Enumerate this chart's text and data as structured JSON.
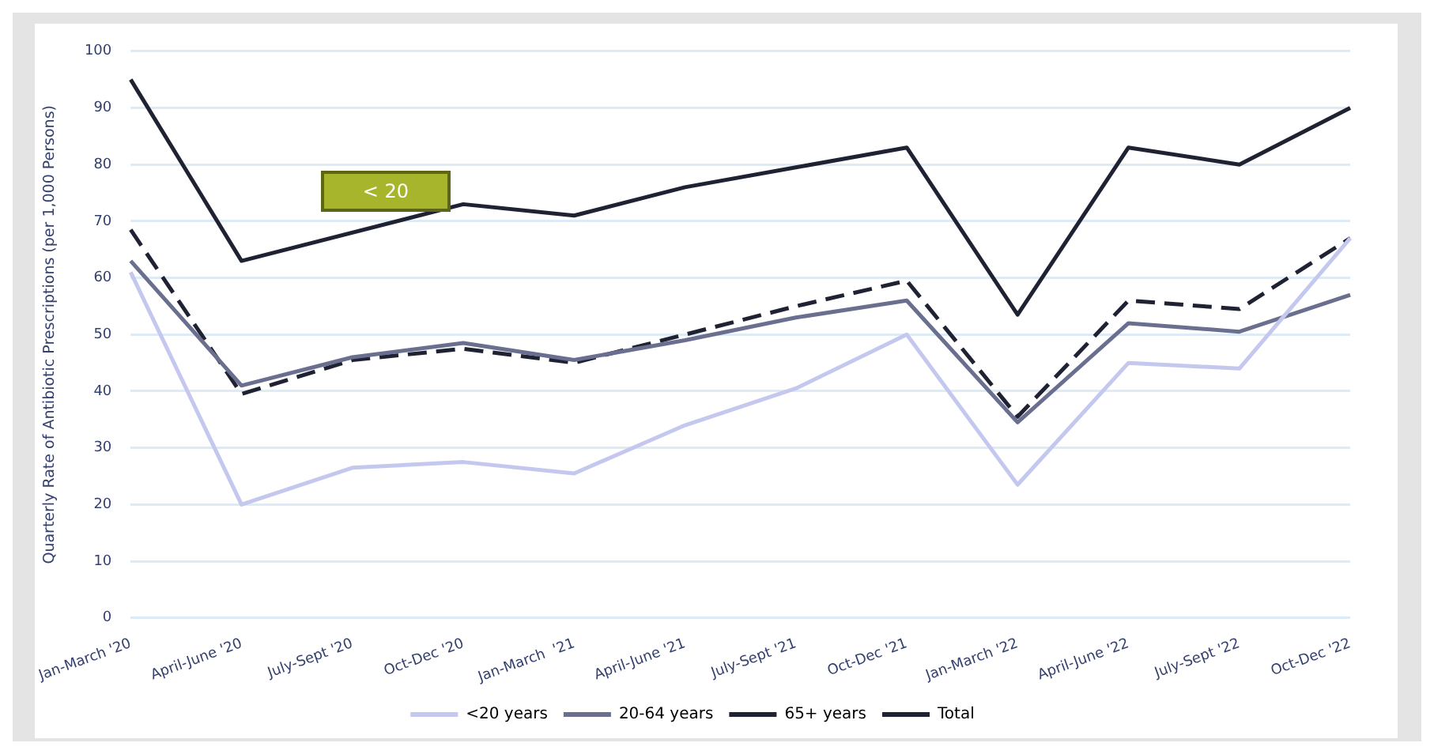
{
  "chart_data": {
    "type": "line",
    "ylabel": "Quarterly Rate of Antibiotic Prescriptions (per 1,000 Persons)",
    "categories": [
      "Jan-March '20",
      "April-June '20",
      "July-Sept '20",
      "Oct-Dec '20",
      "Jan-March  '21",
      "April-June '21",
      "July-Sept '21",
      "Oct-Dec '21",
      "Jan-March '22",
      "April-June '22",
      "July-Sept '22",
      "Oct-Dec '22"
    ],
    "series": [
      {
        "name": "<20 years",
        "color": "#c5c8ee",
        "line_style": "solid",
        "values": [
          61,
          20,
          26.5,
          27.5,
          25.5,
          34,
          40.5,
          50,
          23.5,
          45,
          44,
          67
        ]
      },
      {
        "name": "20-64 years",
        "color": "#6b6f8f",
        "line_style": "solid",
        "values": [
          63,
          41,
          46,
          48.5,
          45.5,
          49,
          53,
          56,
          34.5,
          52,
          50.5,
          57
        ]
      },
      {
        "name": "65+ years",
        "color": "#1f2233",
        "line_style": "solid",
        "values": [
          95,
          63,
          null,
          73,
          71,
          76,
          79.5,
          83,
          53.5,
          83,
          80,
          90
        ]
      },
      {
        "name": "Total",
        "color": "#1f2233",
        "line_style": "dashed",
        "values": [
          68.5,
          39.5,
          45.5,
          47.5,
          45,
          50,
          55,
          59.5,
          35.5,
          56,
          54.5,
          67
        ]
      }
    ],
    "ylim": [
      0,
      100
    ],
    "yticks": [
      0,
      10,
      20,
      30,
      40,
      50,
      60,
      70,
      80,
      90,
      100
    ],
    "grid": "y",
    "legend": "bottom",
    "marker": "none",
    "annotations": [
      "< 20"
    ]
  }
}
